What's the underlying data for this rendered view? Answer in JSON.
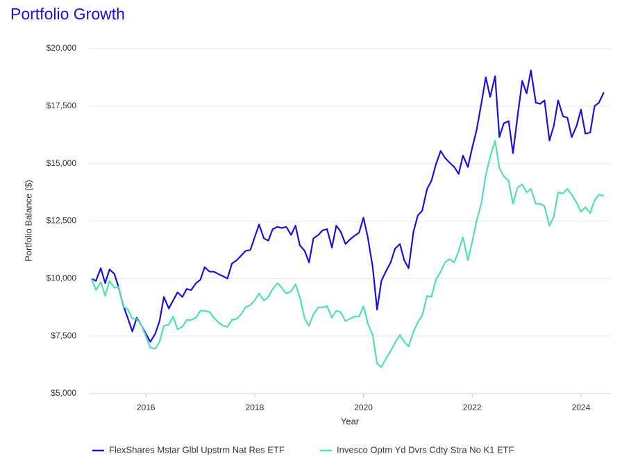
{
  "chart_data": {
    "type": "line",
    "title": "Portfolio Growth",
    "x_label": "Year",
    "y_label": "Portfolio Balance ($)",
    "x": [
      2015,
      2015.08,
      2015.17,
      2015.25,
      2015.33,
      2015.42,
      2015.5,
      2015.58,
      2015.67,
      2015.75,
      2015.83,
      2015.92,
      2016,
      2016.08,
      2016.17,
      2016.25,
      2016.33,
      2016.42,
      2016.5,
      2016.58,
      2016.67,
      2016.75,
      2016.83,
      2016.92,
      2017,
      2017.08,
      2017.17,
      2017.25,
      2017.33,
      2017.42,
      2017.5,
      2017.58,
      2017.67,
      2017.75,
      2017.83,
      2017.92,
      2018,
      2018.08,
      2018.17,
      2018.25,
      2018.33,
      2018.42,
      2018.5,
      2018.58,
      2018.67,
      2018.75,
      2018.83,
      2018.92,
      2019,
      2019.08,
      2019.17,
      2019.25,
      2019.33,
      2019.42,
      2019.5,
      2019.58,
      2019.67,
      2019.75,
      2019.83,
      2019.92,
      2020,
      2020.08,
      2020.17,
      2020.25,
      2020.33,
      2020.42,
      2020.5,
      2020.58,
      2020.67,
      2020.75,
      2020.83,
      2020.92,
      2021,
      2021.08,
      2021.17,
      2021.25,
      2021.33,
      2021.42,
      2021.5,
      2021.58,
      2021.67,
      2021.75,
      2021.83,
      2021.92,
      2022,
      2022.08,
      2022.17,
      2022.25,
      2022.33,
      2022.42,
      2022.5,
      2022.58,
      2022.67,
      2022.75,
      2022.83,
      2022.92,
      2023,
      2023.08,
      2023.17,
      2023.25,
      2023.33,
      2023.42,
      2023.5,
      2023.58,
      2023.67,
      2023.75,
      2023.83,
      2023.92,
      2024,
      2024.08,
      2024.17,
      2024.25,
      2024.33,
      2024.42
    ],
    "series": [
      {
        "name": "FlexShares Mstar Glbl Upstrm Nat Res ETF",
        "color": "#1a0fdc",
        "values": [
          10000,
          9900,
          10450,
          9800,
          10400,
          10200,
          9600,
          8850,
          8250,
          7700,
          8300,
          7950,
          7600,
          7250,
          7600,
          8150,
          9200,
          8700,
          9050,
          9400,
          9200,
          9550,
          9500,
          9800,
          9950,
          10500,
          10300,
          10300,
          10200,
          10100,
          10000,
          10650,
          10800,
          11000,
          11200,
          11250,
          11800,
          12350,
          11750,
          11650,
          12150,
          12250,
          12200,
          12250,
          11900,
          12300,
          11450,
          11200,
          10700,
          11750,
          11900,
          12100,
          12150,
          11350,
          12300,
          12050,
          11500,
          11700,
          11850,
          12000,
          12650,
          11800,
          10500,
          8650,
          9900,
          10350,
          10700,
          11300,
          11500,
          10800,
          10450,
          12050,
          12750,
          12950,
          13900,
          14250,
          14950,
          15550,
          15250,
          15050,
          14850,
          14550,
          15350,
          14850,
          15700,
          16450,
          17650,
          18750,
          17900,
          18800,
          16150,
          16750,
          16850,
          15450,
          17000,
          18600,
          18050,
          19050,
          17650,
          17600,
          17750,
          16000,
          16650,
          17750,
          17050,
          17000,
          16150,
          16650,
          17350,
          16300,
          16350,
          17500,
          17650,
          18100
        ]
      },
      {
        "name": "Invesco Optm Yd Dvrs Cdty Stra No K1 ETF",
        "color": "#4fe0b0",
        "values": [
          10000,
          9500,
          9850,
          9250,
          9900,
          9600,
          9650,
          8800,
          8650,
          8250,
          8250,
          7950,
          7500,
          7000,
          6950,
          7250,
          7950,
          8000,
          8350,
          7800,
          7900,
          8200,
          8200,
          8300,
          8600,
          8600,
          8550,
          8300,
          8100,
          7950,
          7900,
          8200,
          8250,
          8450,
          8750,
          8850,
          9050,
          9350,
          9050,
          9200,
          9550,
          9800,
          9600,
          9350,
          9450,
          9750,
          9200,
          8250,
          7950,
          8450,
          8750,
          8750,
          8800,
          8300,
          8600,
          8550,
          8150,
          8250,
          8350,
          8350,
          8800,
          8050,
          7550,
          6300,
          6150,
          6550,
          6850,
          7200,
          7550,
          7250,
          7050,
          7700,
          8100,
          8400,
          9250,
          9200,
          9950,
          10300,
          10700,
          10850,
          10700,
          11200,
          11800,
          10800,
          11600,
          12500,
          13300,
          14500,
          15300,
          16000,
          14800,
          14450,
          14250,
          13250,
          13950,
          14100,
          13750,
          13900,
          13250,
          13250,
          13150,
          12300,
          12700,
          13750,
          13700,
          13900,
          13650,
          13300,
          12900,
          13100,
          12850,
          13400,
          13650,
          13600
        ]
      }
    ],
    "xlim": [
      2014.95,
      2024.55
    ],
    "xticks": [
      2016,
      2018,
      2020,
      2022,
      2024
    ],
    "ylim": [
      5000,
      20000
    ],
    "yticks": [
      {
        "value": 5000,
        "label": "$5,000"
      },
      {
        "value": 7500,
        "label": "$7,500"
      },
      {
        "value": 10000,
        "label": "$10,000"
      },
      {
        "value": 12500,
        "label": "$12,500"
      },
      {
        "value": 15000,
        "label": "$15,000"
      },
      {
        "value": 17500,
        "label": "$17,500"
      },
      {
        "value": 20000,
        "label": "$20,000"
      }
    ],
    "grid": true,
    "legend": "bottom"
  }
}
